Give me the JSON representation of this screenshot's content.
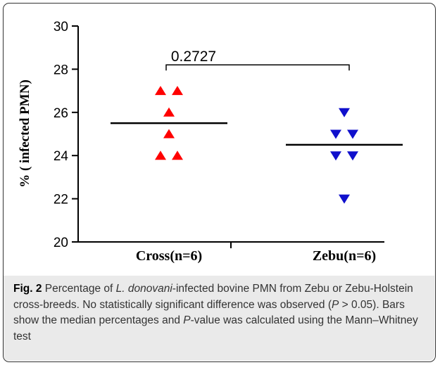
{
  "chart_data": {
    "type": "scatter",
    "title": "",
    "ylabel": "% ( infected PMN)",
    "xlabel": "",
    "ylim": [
      20,
      30
    ],
    "yticks": [
      20,
      22,
      24,
      26,
      28,
      30
    ],
    "categories": [
      "Cross(n=6)",
      "Zebu(n=6)"
    ],
    "series": [
      {
        "name": "Cross(n=6)",
        "marker": "triangle-up",
        "color": "#ff0000",
        "values": [
          27,
          27,
          26,
          25,
          24,
          24
        ],
        "median": 25.5
      },
      {
        "name": "Zebu(n=6)",
        "marker": "triangle-down",
        "color": "#1010cc",
        "values": [
          26,
          25,
          25,
          24,
          24,
          22
        ],
        "median": 24.5
      }
    ],
    "annotation": {
      "text": "0.2727",
      "y": 28.2
    },
    "grid": false
  },
  "caption": {
    "fig_label": "Fig. 2",
    "t1": "Percentage of ",
    "t2_italic": "L. donovani",
    "t3": "-infected bovine PMN from Zebu or Zebu-Holstein cross-breeds. No statistically significant difference was observed (",
    "t4_italic": "P",
    "t5": " > 0.05). Bars show the median percentages and ",
    "t6_italic": "P",
    "t7": "-value was calculated using the Mann–Whitney test"
  }
}
